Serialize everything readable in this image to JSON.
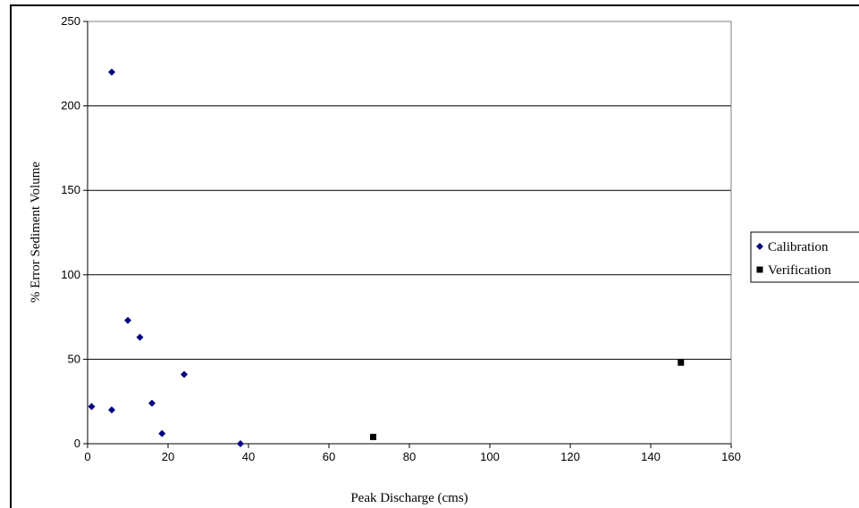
{
  "chart_data": {
    "type": "scatter",
    "title": "",
    "xlabel": "Peak Discharge (cms)",
    "ylabel": "% Error Sediment Volume",
    "xlim": [
      0,
      160
    ],
    "ylim": [
      0,
      250
    ],
    "x_ticks": [
      0,
      20,
      40,
      60,
      80,
      100,
      120,
      140,
      160
    ],
    "y_ticks": [
      0,
      50,
      100,
      150,
      200,
      250
    ],
    "grid": "horizontal",
    "legend_position": "right",
    "series": [
      {
        "name": "Calibration",
        "marker": "diamond",
        "color": "#000080",
        "points": [
          {
            "x": 1,
            "y": 22
          },
          {
            "x": 6,
            "y": 220
          },
          {
            "x": 6,
            "y": 20
          },
          {
            "x": 10,
            "y": 73
          },
          {
            "x": 13,
            "y": 63
          },
          {
            "x": 16,
            "y": 24
          },
          {
            "x": 18.5,
            "y": 6
          },
          {
            "x": 24,
            "y": 41
          },
          {
            "x": 38,
            "y": 0
          }
        ]
      },
      {
        "name": "Verification",
        "marker": "square",
        "color": "#000000",
        "points": [
          {
            "x": 71,
            "y": 4
          },
          {
            "x": 147.5,
            "y": 48
          }
        ]
      }
    ]
  }
}
